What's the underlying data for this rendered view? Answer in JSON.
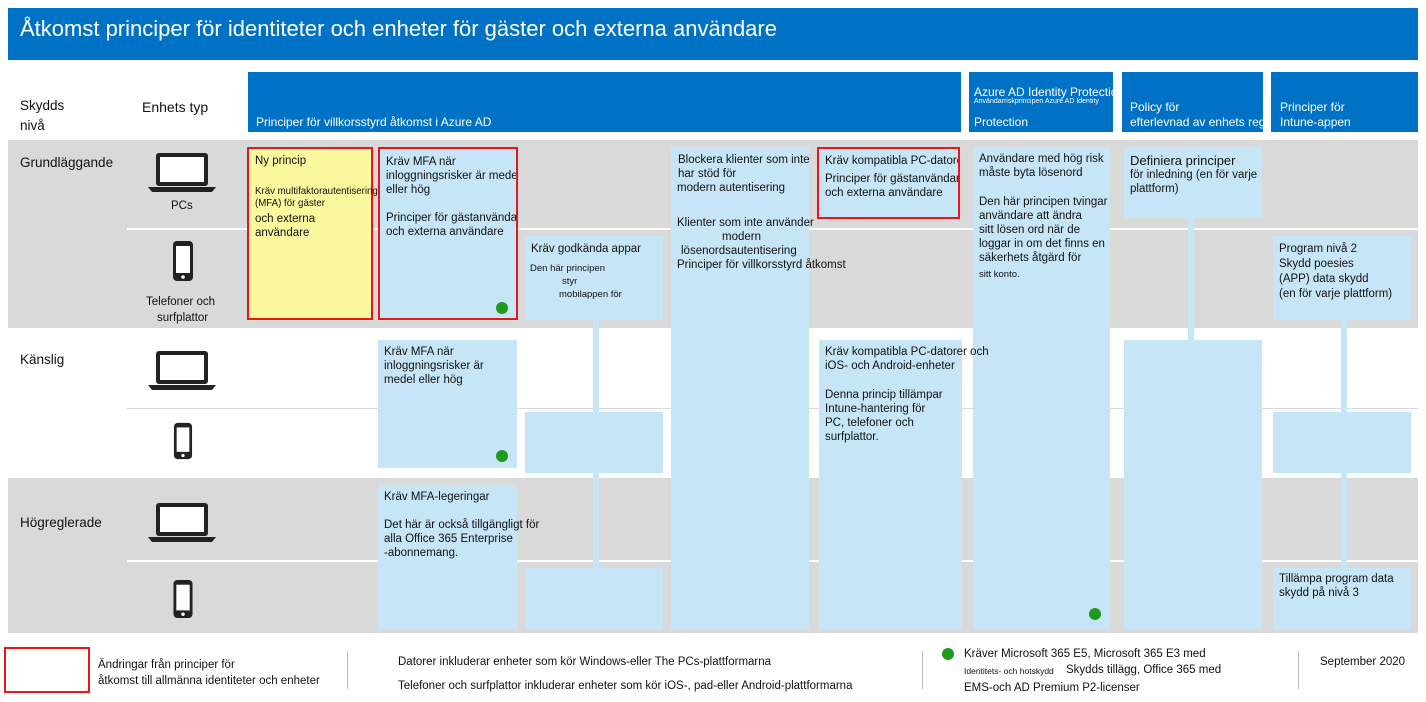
{
  "title": "Åtkomst principer för identiteter och enheter för gäster och externa användare",
  "columns": {
    "protection_level": "Skydds",
    "protection_level2": "nivå",
    "device_type": "Enhets typ",
    "ca_policies": "Principer för villkorsstyrd åtkomst i Azure AD",
    "idp_line1": "Azure AD Identity Protection",
    "idp_small": "Användarriskprincipen Azure AD Identity",
    "idp_line2": "Protection",
    "compliance_line1": "Policy för",
    "compliance_line2": "efterlevnad av enhets regler",
    "intune_line1": "Principer för",
    "intune_line2": "Intune-appen"
  },
  "rows": {
    "baseline": "Grundläggande",
    "sensitive": "Känslig",
    "highly_regulated": "Högreglerade",
    "pcs": "PCs",
    "phones_line1": "Telefoner och",
    "phones_line2": "surfplattor"
  },
  "cards": {
    "new_policy": {
      "title": "Ny princip",
      "l1": "Kräv multifaktorautentisering",
      "l2": "(MFA) för gäster",
      "l3": "och externa",
      "l4": "användare"
    },
    "mfa_baseline": {
      "l1": "Kräv MFA när",
      "l2": "inloggningsrisker är medel",
      "l3": "eller hög",
      "l4": "Principer för gästanvändare",
      "l5": "och externa användare"
    },
    "approved_apps": {
      "l1": "Kräv godkända appar",
      "l2": "Den här principen",
      "l3": "styr",
      "l4": "mobilappen för"
    },
    "block_clients": {
      "l1": "Blockera klienter som inte",
      "l2": "har stöd för",
      "l3": "modern autentisering",
      "l4": "Klienter som inte använder",
      "l5": "modern",
      "l6": "lösenordsautentisering",
      "l7": "Principer för villkorsstyrd åtkomst"
    },
    "compliant_pcs": {
      "l1": "Kräv kompatibla PC-datorer",
      "l2": "Principer för gästanvändare",
      "l3": "och externa användare"
    },
    "high_risk": {
      "l1": "Användare med hög risk",
      "l2": "måste byta lösenord",
      "l3": "Den här principen tvingar",
      "l4": "användare att ändra",
      "l5": "sitt lösen ord när de",
      "l6": "loggar in om det finns en",
      "l7": "säkerhets åtgärd för",
      "l8": "sitt konto."
    },
    "define_policies": {
      "l1": "Definiera principer",
      "l2": "för inledning (en för varje",
      "l3": "plattform)"
    },
    "app_level2": {
      "l1": "Program nivå 2",
      "l2": "Skydd poesies",
      "l3": "(APP) data skydd",
      "l4": "(en för varje plattform)"
    },
    "mfa_sensitive": {
      "l1": "Kräv MFA när",
      "l2": "inloggningsrisker är",
      "l3": "medel eller hög"
    },
    "compliant_pcs_mobile": {
      "l1": "Kräv kompatibla PC-datorer och",
      "l2": "iOS- och Android-enheter",
      "l3": "Denna princip tillämpar",
      "l4": "Intune-hantering för",
      "l5": "PC, telefoner och",
      "l6": "surfplattor."
    },
    "mfa_always": {
      "l1": "Kräv MFA-legeringar",
      "l2": "Det här är också tillgängligt för",
      "l3": "alla Office 365 Enterprise",
      "l4": "-abonnemang."
    },
    "app_level3": {
      "l1": "Tillämpa program data",
      "l2": "skydd på nivå 3"
    }
  },
  "footer": {
    "legend_l1": "Ändringar från principer för",
    "legend_l2": "åtkomst till allmänna identiteter och enheter",
    "pcs_note": "Datorer inkluderar enheter som kör Windows-eller The PCs-plattformarna",
    "phones_note": "Telefoner och surfplattor inkluderar enheter som kör iOS-, pad-eller Android-plattformarna",
    "license_l1": "Kräver Microsoft 365 E5, Microsoft 365 E3 med",
    "license_l2a": "Identitets- och hotskydd",
    "license_l2b": "Skydds tillägg, Office 365 med",
    "license_l3": "EMS-och AD Premium P2-licenser",
    "date": "September 2020"
  },
  "icons": [
    "laptop-icon",
    "phone-icon"
  ],
  "colors": {
    "header_blue": "#0072c6",
    "light_blue": "#c6e5f7",
    "band_gray": "#d9d9d9",
    "highlight_red": "#e8161b",
    "new_yellow": "#fbf89d",
    "license_green": "#1e9a1e"
  }
}
